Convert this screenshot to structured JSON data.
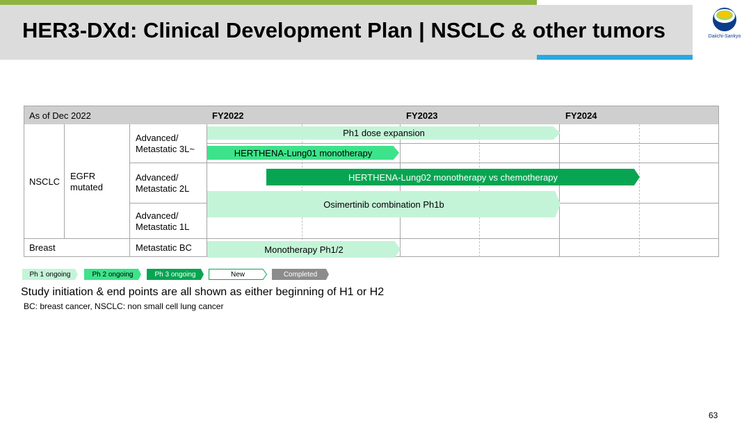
{
  "title": "HER3-DXd: Clinical Development Plan | NSCLC & other tumors",
  "logo": {
    "text": "Daiichi-Sankyo",
    "colors": [
      "#f6c600",
      "#28a9e0",
      "#0b3c8c"
    ]
  },
  "table": {
    "as_of": "As of Dec 2022",
    "years": [
      "FY2022",
      "FY2023",
      "FY2024"
    ],
    "indication": "NSCLC",
    "subtype": "EGFR mutated",
    "rows": [
      {
        "label": "Advanced/ Metastatic 3L~"
      },
      {
        "label": "Advanced/ Metastatic 2L"
      },
      {
        "label": "Advanced/ Metastatic 1L"
      },
      {
        "label": "Metastatic BC"
      }
    ],
    "breast": "Breast"
  },
  "bars": [
    {
      "label": "Ph1 dose expansion",
      "phase": "Ph 1 ongoing"
    },
    {
      "label": "HERTHENA-Lung01 monotherapy",
      "phase": "Ph 2 ongoing"
    },
    {
      "label": "HERTHENA-Lung02 monotherapy vs chemotherapy",
      "phase": "Ph 3 ongoing"
    },
    {
      "label": "Osimertinib combination Ph1b",
      "phase": "Ph 1 ongoing"
    },
    {
      "label": "Monotherapy Ph1/2",
      "phase": "Ph 1 ongoing"
    }
  ],
  "legend": [
    "Ph 1 ongoing",
    "Ph 2 ongoing",
    "Ph 3 ongoing",
    "New",
    "Completed"
  ],
  "colors": {
    "ph1": "#c4f4d8",
    "ph2": "#3de38a",
    "ph3": "#07a552",
    "completed": "#8c8c8c",
    "brand_green": "#8db43e",
    "brand_blue": "#28a9e0"
  },
  "note": "Study initiation & end points are all shown as either beginning of H1 or H2",
  "abbrev": "BC: breast cancer, NSCLC: non small cell lung cancer",
  "page_number": "63"
}
